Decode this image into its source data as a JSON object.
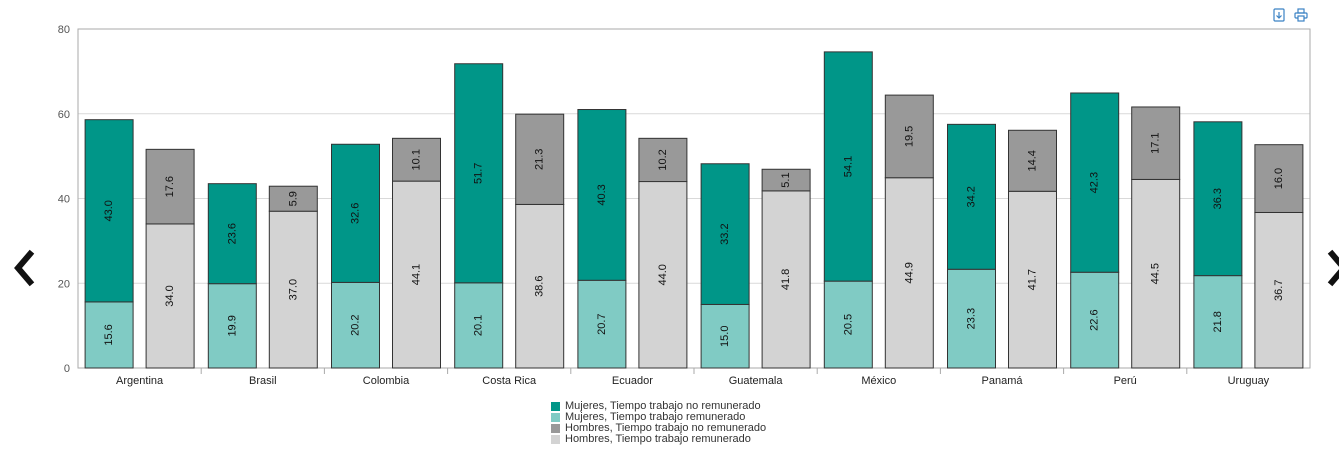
{
  "chart_data": {
    "type": "bar",
    "stacked": "grouped-stacked",
    "categories": [
      "Argentina",
      "Brasil",
      "Colombia",
      "Costa Rica",
      "Ecuador",
      "Guatemala",
      "México",
      "Panamá",
      "Perú",
      "Uruguay"
    ],
    "series": [
      {
        "name": "Mujeres, Tiempo trabajo remunerado",
        "group": "mujeres",
        "color": "#80CBC4",
        "values": [
          15.6,
          19.9,
          20.2,
          20.1,
          20.7,
          15.0,
          20.5,
          23.3,
          22.6,
          21.8
        ],
        "labels": [
          "15.6",
          "19.9",
          "20.2",
          "20.1",
          "20.7",
          "15.0",
          "20.5",
          "23.3",
          "22.6",
          "21.8"
        ]
      },
      {
        "name": "Mujeres, Tiempo trabajo no remunerado",
        "group": "mujeres",
        "color": "#009688",
        "values": [
          43.0,
          23.6,
          32.6,
          51.7,
          40.3,
          33.2,
          54.1,
          34.2,
          42.3,
          36.3
        ],
        "labels": [
          "43.0",
          "23.6",
          "32.6",
          "51.7",
          "40.3",
          "33.2",
          "54.1",
          "34.2",
          "42.3",
          "36.3"
        ]
      },
      {
        "name": "Hombres, Tiempo trabajo remunerado",
        "group": "hombres",
        "color": "#D3D3D3",
        "values": [
          34.0,
          37.0,
          44.1,
          38.6,
          44.0,
          41.8,
          44.9,
          41.7,
          44.5,
          36.7
        ],
        "labels": [
          "34.0",
          "37.0",
          "44.1",
          "38.6",
          "44.0",
          "41.8",
          "44.9",
          "41.7",
          "44.5",
          "36.7"
        ]
      },
      {
        "name": "Hombres, Tiempo trabajo no remunerado",
        "group": "hombres",
        "color": "#999999",
        "values": [
          17.6,
          5.9,
          10.1,
          21.3,
          10.2,
          5.1,
          19.5,
          14.4,
          17.1,
          16.0
        ],
        "labels": [
          "17.6",
          "5.9",
          "10.1",
          "21.3",
          "10.2",
          "5.1",
          "19.5",
          "14.4",
          "17.1",
          "16.0"
        ]
      }
    ],
    "ylim": [
      0,
      80
    ],
    "yticks": [
      "0",
      "20",
      "40",
      "60",
      "80"
    ],
    "grid": true,
    "legend_position": "bottom-center",
    "legend": [
      {
        "label": "Mujeres, Tiempo trabajo no remunerado",
        "color": "#009688"
      },
      {
        "label": "Mujeres, Tiempo trabajo remunerado",
        "color": "#80CBC4"
      },
      {
        "label": "Hombres, Tiempo trabajo no remunerado",
        "color": "#999999"
      },
      {
        "label": "Hombres, Tiempo trabajo remunerado",
        "color": "#D3D3D3"
      }
    ]
  },
  "controls": {
    "prev_icon": "chevron-left-icon",
    "next_icon": "chevron-right-icon",
    "export_icon": "download-icon",
    "print_icon": "print-icon",
    "accent": "#3b82c4"
  }
}
